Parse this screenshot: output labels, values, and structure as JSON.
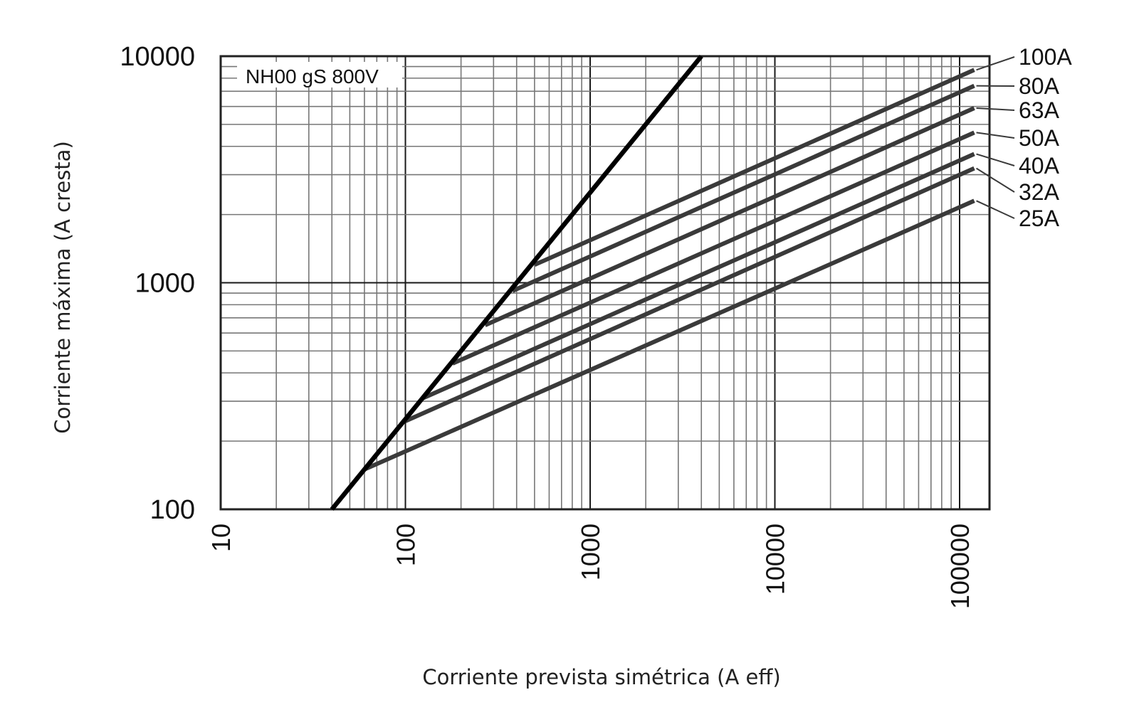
{
  "chart_data": {
    "type": "line",
    "annotation": "NH00 gS 800V",
    "xlabel": "Corriente prevista simétrica (A eff)",
    "ylabel": "Corriente máxima (A cresta)",
    "x_scale": "log",
    "y_scale": "log",
    "xlim": [
      10,
      150000
    ],
    "ylim": [
      100,
      10000
    ],
    "x_ticks": [
      "10",
      "100",
      "1000",
      "10000",
      "100000"
    ],
    "y_ticks": [
      "100",
      "1000",
      "10000"
    ],
    "grid": true,
    "boundary_line": {
      "description": "maximum peak current line (bold)",
      "points": [
        [
          40,
          100
        ],
        [
          4000,
          10000
        ]
      ]
    },
    "series": [
      {
        "name": "100A",
        "points": [
          [
            500,
            1200
          ],
          [
            120000,
            8700
          ]
        ]
      },
      {
        "name": "80A",
        "points": [
          [
            380,
            920
          ],
          [
            120000,
            7400
          ]
        ]
      },
      {
        "name": "63A",
        "points": [
          [
            270,
            650
          ],
          [
            120000,
            5900
          ]
        ]
      },
      {
        "name": "50A",
        "points": [
          [
            180,
            440
          ],
          [
            120000,
            4600
          ]
        ]
      },
      {
        "name": "40A",
        "points": [
          [
            125,
            310
          ],
          [
            120000,
            3700
          ]
        ]
      },
      {
        "name": "32A",
        "points": [
          [
            100,
            245
          ],
          [
            120000,
            3200
          ]
        ]
      },
      {
        "name": "25A",
        "points": [
          [
            60,
            150
          ],
          [
            120000,
            2300
          ]
        ]
      }
    ]
  }
}
